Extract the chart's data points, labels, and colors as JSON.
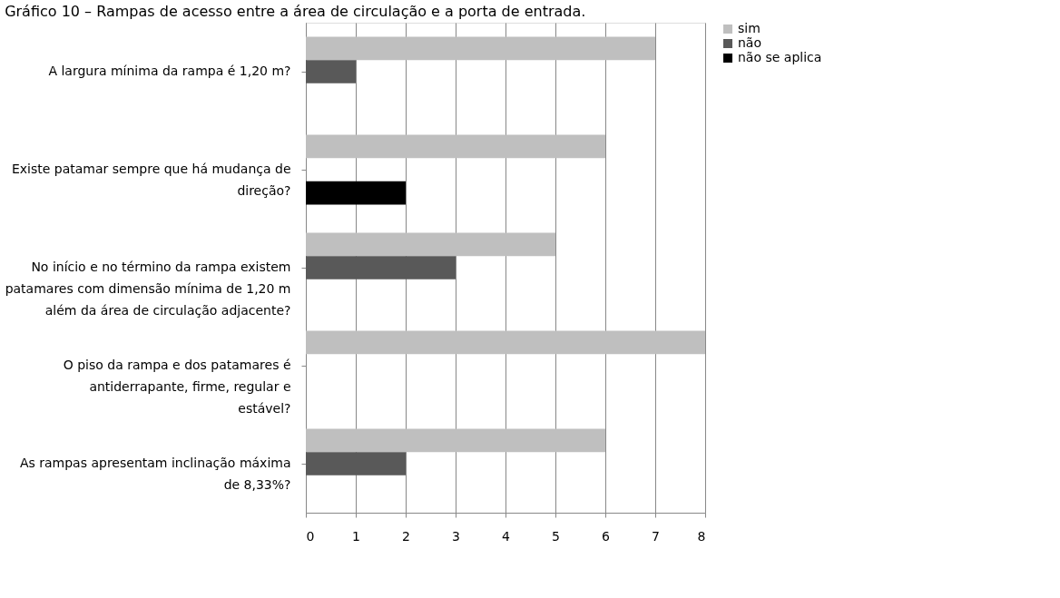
{
  "chart_data": {
    "type": "bar",
    "orientation": "horizontal",
    "title": "Gráfico 10 – Rampas de acesso entre a área de circulação e a porta de entrada.",
    "categories": [
      "A largura mínima da rampa é 1,20 m?",
      "Existe patamar sempre que há mudança de direção?",
      "No início e no término da rampa existem patamares com dimensão mínima de 1,20 m além da área de circulação adjacente?",
      "O piso da rampa e dos patamares é antiderrapante, firme, regular e estável?",
      "As rampas apresentam inclinação máxima de 8,33%?"
    ],
    "series": [
      {
        "name": "sim",
        "color": "#bfbfbf",
        "values": [
          7,
          6,
          5,
          8,
          6
        ]
      },
      {
        "name": "não",
        "color": "#595959",
        "values": [
          1,
          null,
          3,
          null,
          2
        ]
      },
      {
        "name": "não se aplica",
        "color": "#000000",
        "values": [
          null,
          2,
          null,
          null,
          null
        ]
      }
    ],
    "xlim": [
      0,
      8
    ],
    "xticks": [
      0,
      1,
      2,
      3,
      4,
      5,
      6,
      7,
      8
    ],
    "grid": "x",
    "legend": "right"
  }
}
